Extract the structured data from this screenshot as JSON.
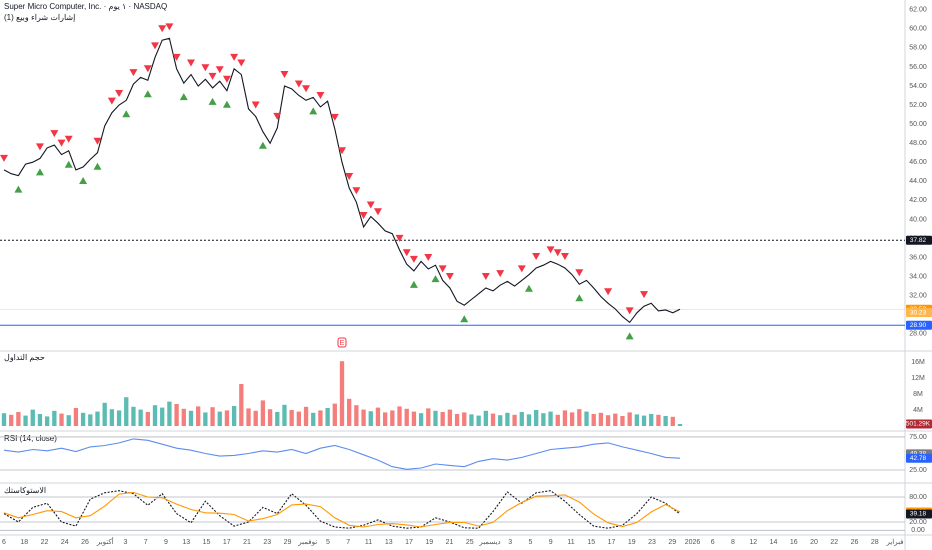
{
  "header": {
    "title": "Super Micro Computer, Inc. · ١ يوم · NASDAQ",
    "indicator": "إشارات شراء وبيع (1)"
  },
  "chart_data": [
    {
      "type": "line",
      "ylim": [
        26.3,
        62.6
      ],
      "yticks": [
        {
          "value": 28,
          "label": "28.00"
        },
        {
          "value": 30,
          "label": "30.00"
        },
        {
          "value": 32,
          "label": "32.00"
        },
        {
          "value": 34,
          "label": "34.00"
        },
        {
          "value": 36,
          "label": "36.00"
        },
        {
          "value": 38,
          "label": "38.00"
        },
        {
          "value": 40,
          "label": "40.00"
        },
        {
          "value": 42,
          "label": "42.00"
        },
        {
          "value": 44,
          "label": "44.00"
        },
        {
          "value": 46,
          "label": "46.00"
        },
        {
          "value": 48,
          "label": "48.00"
        },
        {
          "value": 50,
          "label": "50.00"
        },
        {
          "value": 52,
          "label": "52.00"
        },
        {
          "value": 54,
          "label": "54.00"
        },
        {
          "value": 56,
          "label": "56.00"
        },
        {
          "value": 58,
          "label": "58.00"
        },
        {
          "value": 60,
          "label": "60.00"
        },
        {
          "value": 62,
          "label": "62.00"
        }
      ],
      "grid": false,
      "series": [
        {
          "color": "#131722",
          "values": [
            45.2,
            44.8,
            44.6,
            45.8,
            46.0,
            46.4,
            47.5,
            47.8,
            46.8,
            47.2,
            45.2,
            45.5,
            46.3,
            47.0,
            49.8,
            51.2,
            52.0,
            52.5,
            54.2,
            54.9,
            54.6,
            57.0,
            58.8,
            59.0,
            55.8,
            54.3,
            55.2,
            54.0,
            54.7,
            53.8,
            54.5,
            53.5,
            55.8,
            55.2,
            51.6,
            50.8,
            49.2,
            48.0,
            49.6,
            54.0,
            53.7,
            53.0,
            52.5,
            52.8,
            51.8,
            52.4,
            49.5,
            46.0,
            43.3,
            41.8,
            39.2,
            40.3,
            39.6,
            38.8,
            38.5,
            36.8,
            35.3,
            34.6,
            35.6,
            34.8,
            35.2,
            33.6,
            32.8,
            31.4,
            31.0,
            31.6,
            32.2,
            32.8,
            32.5,
            33.1,
            33.5,
            33.0,
            33.6,
            34.2,
            34.9,
            35.2,
            35.6,
            35.3,
            34.9,
            34.2,
            33.2,
            33.6,
            32.8,
            31.9,
            31.2,
            30.6,
            29.8,
            29.2,
            30.2,
            30.9,
            31.2,
            30.4,
            30.5,
            30.2,
            30.58
          ]
        }
      ],
      "sell_signals": [
        0,
        5,
        7,
        8,
        9,
        13,
        15,
        16,
        18,
        20,
        21,
        22,
        23,
        24,
        26,
        28,
        29,
        30,
        31,
        32,
        33,
        35,
        38,
        39,
        41,
        42,
        44,
        46,
        47,
        48,
        49,
        50,
        51,
        52,
        55,
        56,
        57,
        59,
        61,
        62,
        67,
        69,
        72,
        74,
        76,
        77,
        78,
        80,
        84,
        87,
        89
      ],
      "buy_signals": [
        2,
        5,
        9,
        11,
        13,
        17,
        20,
        25,
        29,
        31,
        36,
        43,
        57,
        60,
        64,
        73,
        80,
        87
      ],
      "sell_color": "#f23645",
      "buy_color": "#43a047",
      "levels": [
        {
          "value": 37.82,
          "color": "#131722",
          "line": "dash"
        },
        {
          "value": 30.58,
          "color": "#ff9800",
          "line": "faint"
        },
        {
          "value": 30.23,
          "color": "#ffb74d"
        },
        {
          "value": 28.9,
          "label": "28.90",
          "color": "#2962ff",
          "line": "solid"
        }
      ],
      "earnings": {
        "label": "E",
        "index": 47
      }
    },
    {
      "type": "bar",
      "label": "حجم التداول",
      "ylim": [
        0,
        18.5
      ],
      "yticks": [
        {
          "value": 4,
          "label": "4M"
        },
        {
          "value": 8,
          "label": "8M"
        },
        {
          "value": 12,
          "label": "12M"
        },
        {
          "value": 16,
          "label": "16M"
        }
      ],
      "grid": false,
      "up_color": "#26a69a",
      "down_color": "#ef5350",
      "series": [
        {
          "values": [
            3.2,
            2.8,
            3.5,
            2.6,
            4.1,
            3.0,
            2.4,
            3.8,
            3.1,
            2.7,
            4.5,
            3.3,
            2.9,
            3.6,
            5.8,
            4.2,
            3.9,
            7.2,
            4.8,
            4.1,
            3.5,
            5.2,
            4.6,
            6.1,
            5.5,
            4.3,
            3.8,
            4.9,
            3.4,
            4.7,
            3.6,
            3.9,
            5.0,
            10.5,
            4.4,
            3.8,
            6.4,
            4.2,
            3.5,
            5.3,
            4.0,
            3.6,
            4.8,
            3.3,
            3.9,
            4.5,
            5.6,
            16.2,
            6.8,
            5.2,
            4.1,
            3.7,
            4.6,
            3.4,
            3.9,
            4.9,
            4.3,
            3.6,
            3.2,
            4.4,
            3.8,
            3.5,
            4.1,
            3.0,
            3.4,
            2.9,
            2.6,
            3.8,
            3.1,
            2.7,
            3.3,
            2.8,
            3.5,
            2.9,
            4.0,
            3.2,
            3.6,
            2.8,
            3.9,
            3.4,
            4.2,
            3.6,
            3.0,
            3.3,
            2.7,
            3.1,
            2.5,
            3.4,
            2.9,
            2.6,
            3.0,
            2.8,
            2.5,
            2.3,
            0.50129
          ]
        }
      ],
      "levels": [
        {
          "value": 0.50129,
          "label": "501.29K",
          "color": "#b22833"
        }
      ]
    },
    {
      "type": "line",
      "label": "RSI (14, close)",
      "ylim": [
        8.3,
        81
      ],
      "yticks": [
        {
          "value": 25,
          "label": "25.00"
        },
        {
          "value": 75,
          "label": "75.00"
        }
      ],
      "grid": true,
      "series": [
        {
          "color": "#5b8def",
          "values": [
            55,
            52,
            56,
            54,
            58,
            53,
            60,
            62,
            66,
            72,
            70,
            64,
            58,
            55,
            50,
            46,
            47,
            50,
            54,
            52,
            56,
            50,
            58,
            62,
            56,
            48,
            40,
            30,
            26,
            28,
            34,
            32,
            30,
            38,
            42,
            40,
            44,
            50,
            56,
            58,
            60,
            64,
            66,
            60,
            55,
            50,
            44,
            42.78
          ]
        }
      ],
      "levels": [
        {
          "value": 49.38,
          "color": "#787b86"
        },
        {
          "value": 42.78,
          "color": "#2962ff"
        }
      ]
    },
    {
      "type": "line",
      "label": "الاستوكاستك",
      "ylim": [
        -6.5,
        108.8
      ],
      "yticks": [
        {
          "value": 0,
          "label": "0.00"
        },
        {
          "value": 20,
          "label": "20.00"
        },
        {
          "value": 80,
          "label": "80.00"
        }
      ],
      "grid": true,
      "series": [
        {
          "color": "#131722",
          "style": "dash",
          "values": [
            40,
            20,
            55,
            65,
            20,
            10,
            75,
            90,
            95,
            88,
            60,
            88,
            40,
            18,
            70,
            35,
            10,
            20,
            55,
            40,
            88,
            60,
            22,
            8,
            5,
            12,
            25,
            10,
            5,
            8,
            30,
            20,
            6,
            5,
            45,
            92,
            65,
            90,
            95,
            70,
            38,
            10,
            5,
            12,
            40,
            80,
            65,
            39.18
          ]
        },
        {
          "color": "#ff9800",
          "values": [
            42,
            30,
            38,
            47,
            45,
            30,
            35,
            58,
            87,
            91,
            80,
            78,
            63,
            50,
            42,
            41,
            38,
            22,
            28,
            38,
            61,
            63,
            57,
            30,
            12,
            8,
            14,
            16,
            13,
            8,
            14,
            19,
            19,
            10,
            19,
            47,
            67,
            82,
            83,
            85,
            68,
            39,
            18,
            9,
            19,
            44,
            62,
            43.98
          ]
        }
      ],
      "levels": [
        {
          "value": 43.98,
          "color": "#ff9800"
        },
        {
          "value": 39.18,
          "color": "#131722"
        }
      ]
    }
  ],
  "time_axis": [
    "6",
    "18",
    "22",
    "24",
    "26",
    "أكتوبر",
    "3",
    "7",
    "9",
    "13",
    "15",
    "17",
    "21",
    "23",
    "29",
    "نوفمبر",
    "5",
    "7",
    "11",
    "13",
    "17",
    "19",
    "21",
    "25",
    "ديسمبر",
    "3",
    "5",
    "9",
    "11",
    "15",
    "17",
    "19",
    "23",
    "29",
    "2026",
    "6",
    "8",
    "12",
    "14",
    "16",
    "20",
    "22",
    "26",
    "28",
    "فبراير"
  ]
}
